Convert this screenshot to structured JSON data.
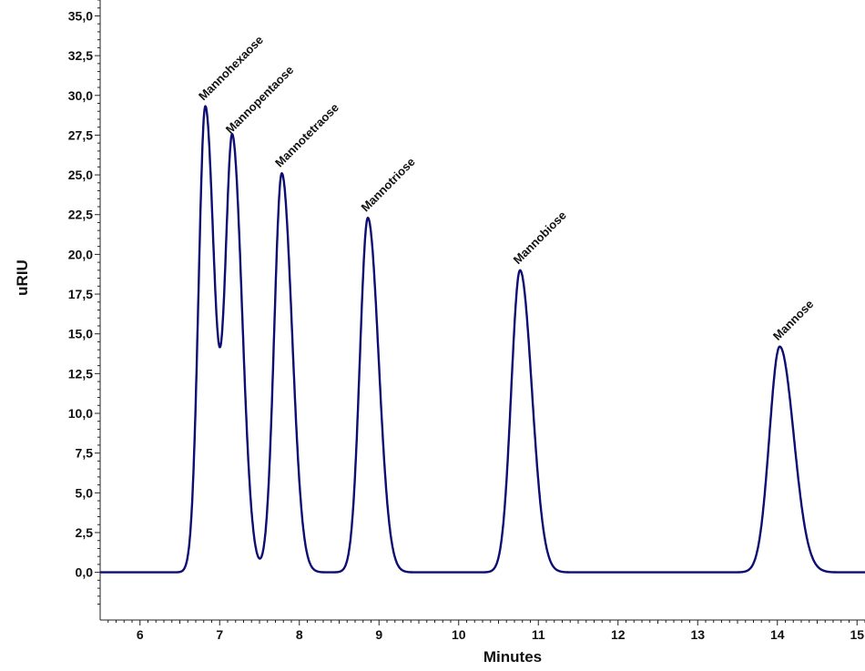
{
  "chart_data": {
    "type": "line",
    "xlabel": "Minutes",
    "ylabel": "uRIU",
    "xlim": [
      5.5,
      15.1
    ],
    "ylim": [
      -3.0,
      36.0
    ],
    "x_ticks": [
      6,
      7,
      8,
      9,
      10,
      11,
      12,
      13,
      14,
      15
    ],
    "y_ticks": [
      "0,0",
      "2,5",
      "5,0",
      "7,5",
      "10,0",
      "12,5",
      "15,0",
      "17,5",
      "20,0",
      "22,5",
      "25,0",
      "27,5",
      "30,0",
      "32,5",
      "35,0"
    ],
    "y_tick_values": [
      0,
      2.5,
      5,
      7.5,
      10,
      12.5,
      15,
      17.5,
      20,
      22.5,
      25,
      27.5,
      30,
      32.5,
      35
    ],
    "grid": false,
    "line_color": "#0d0d73",
    "baseline": 0.0,
    "peaks": [
      {
        "label": "Mannohexaose",
        "time": 6.82,
        "height": 29.3
      },
      {
        "label": "Mannopentaose",
        "time": 7.16,
        "height": 27.2
      },
      {
        "label": "Mannotetraose",
        "time": 7.78,
        "height": 25.1
      },
      {
        "label": "Mannotriose",
        "time": 8.86,
        "height": 22.3
      },
      {
        "label": "Mannobiose",
        "time": 10.77,
        "height": 19.0
      },
      {
        "label": "Mannose",
        "time": 14.03,
        "height": 14.2
      }
    ]
  }
}
